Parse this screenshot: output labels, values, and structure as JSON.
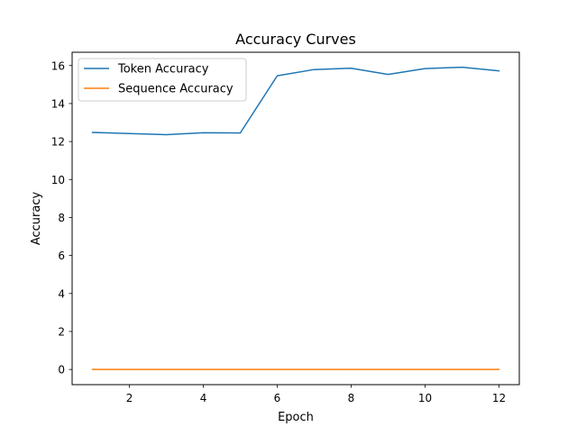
{
  "chart_data": {
    "type": "line",
    "title": "Accuracy Curves",
    "xlabel": "Epoch",
    "ylabel": "Accuracy",
    "x": [
      1,
      2,
      3,
      4,
      5,
      6,
      7,
      8,
      9,
      10,
      11,
      12
    ],
    "xlim": [
      0.45,
      12.55
    ],
    "ylim": [
      -0.8,
      16.7
    ],
    "xticks": [
      2,
      4,
      6,
      8,
      10,
      12
    ],
    "yticks": [
      0,
      2,
      4,
      6,
      8,
      10,
      12,
      14,
      16
    ],
    "grid": false,
    "legend_position": "upper-left",
    "series": [
      {
        "name": "Token Accuracy",
        "color": "#1f77b4",
        "values": [
          12.48,
          12.42,
          12.36,
          12.46,
          12.45,
          15.46,
          15.79,
          15.86,
          15.53,
          15.84,
          15.91,
          15.72
        ]
      },
      {
        "name": "Sequence Accuracy",
        "color": "#ff7f0e",
        "values": [
          0,
          0,
          0,
          0,
          0,
          0,
          0,
          0,
          0,
          0,
          0,
          0
        ]
      }
    ]
  }
}
